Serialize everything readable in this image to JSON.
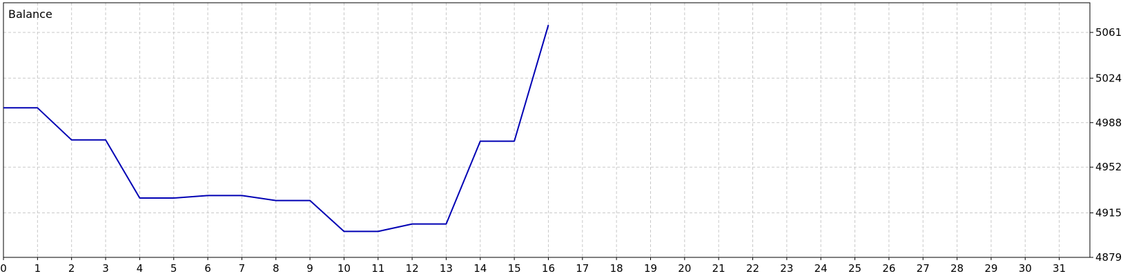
{
  "chart_data": {
    "type": "line",
    "title": "Balance",
    "xlabel": "",
    "ylabel": "",
    "x": [
      0,
      1,
      2,
      3,
      4,
      5,
      6,
      7,
      8,
      9,
      10,
      11,
      12,
      13,
      14,
      15,
      16
    ],
    "series": [
      {
        "values": [
          5000,
          5000,
          4974,
          4974,
          4927,
          4927,
          4929,
          4929,
          4925,
          4925,
          4900,
          4900,
          4906,
          4906,
          4973,
          4973,
          5067
        ],
        "color": "#0000b4"
      }
    ],
    "xlim": [
      0,
      31.9
    ],
    "ylim": [
      4879,
      5085
    ],
    "x_ticks": [
      "0",
      "1",
      "2",
      "3",
      "4",
      "5",
      "6",
      "7",
      "8",
      "9",
      "10",
      "11",
      "12",
      "13",
      "14",
      "15",
      "16",
      "17",
      "18",
      "19",
      "20",
      "21",
      "22",
      "23",
      "24",
      "25",
      "26",
      "27",
      "28",
      "29",
      "30",
      "31"
    ],
    "y_ticks": [
      "4879",
      "4915",
      "4952",
      "4988",
      "5024",
      "5061"
    ],
    "y_axis_position": "right",
    "grid": true,
    "legend": "none"
  }
}
